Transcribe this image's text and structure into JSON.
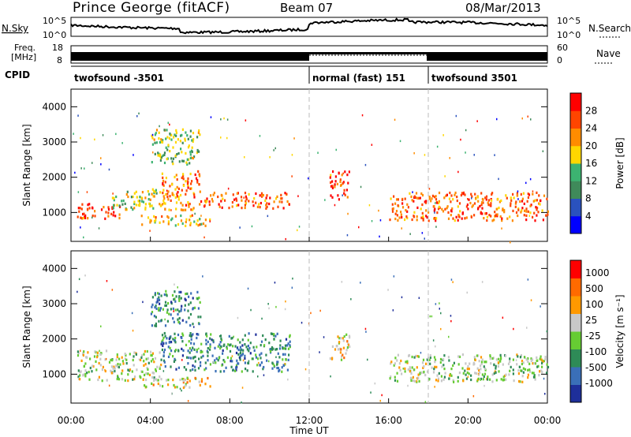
{
  "header": {
    "station": "Prince George (fitACF)",
    "beam": "Beam 07",
    "date": "08/Mar/2013"
  },
  "panel_labels": {
    "nsky": "N.Sky",
    "nsearch": "N.Search",
    "freq_line1": "Freq.",
    "freq_line2": "[MHz]",
    "nave": "Nave",
    "cpid": "CPID"
  },
  "noise_ticks": [
    "10^5",
    "10^0"
  ],
  "freq_ticks": [
    "18",
    "8"
  ],
  "nave_ticks": [
    "60",
    "0"
  ],
  "cpid_segments": [
    {
      "label": "twofsound -3501",
      "start": 0,
      "end": 12
    },
    {
      "label": "normal (fast) 151",
      "start": 12,
      "end": 18
    },
    {
      "label": "twofsound 3501",
      "start": 18,
      "end": 24
    }
  ],
  "colors": {
    "power": [
      "#0000ff",
      "#2a52be",
      "#3f8a5a",
      "#3cb371",
      "#ffd700",
      "#ff8c00",
      "#ff4500",
      "#ff0000"
    ],
    "velocity": [
      "#1e2f9a",
      "#3a6fb8",
      "#2e8b57",
      "#66cc33",
      "#c8c8c8",
      "#ff9900",
      "#ff6a00",
      "#ff0000"
    ]
  },
  "chart_data": [
    {
      "type": "heatmap",
      "ylabel": "Slant Range [km]",
      "xlabel": "Time UT",
      "x_ticks": [
        "00:00",
        "04:00",
        "08:00",
        "12:00",
        "16:00",
        "20:00",
        "00:00"
      ],
      "y_ticks": [
        "1000",
        "2000",
        "3000",
        "4000"
      ],
      "xlim": [
        0,
        24
      ],
      "ylim": [
        180,
        4500
      ],
      "colorbar": {
        "label": "Power [dB]",
        "ticks": [
          "4",
          "8",
          "12",
          "16",
          "20",
          "24",
          "28"
        ],
        "range": [
          0,
          30
        ]
      },
      "echo_regions": [
        {
          "t0": 0.3,
          "t1": 2.5,
          "r0": 850,
          "r1": 1300,
          "level": 0.85
        },
        {
          "t0": 2.0,
          "t1": 4.5,
          "r0": 1100,
          "r1": 1700,
          "level": 0.5
        },
        {
          "t0": 4.5,
          "t1": 6.5,
          "r0": 1100,
          "r1": 2200,
          "level": 0.75
        },
        {
          "t0": 6.5,
          "t1": 11.0,
          "r0": 1150,
          "r1": 1600,
          "level": 0.8
        },
        {
          "t0": 3.5,
          "t1": 7.0,
          "r0": 650,
          "r1": 950,
          "level": 0.6
        },
        {
          "t0": 4.0,
          "t1": 6.5,
          "r0": 2400,
          "r1": 3400,
          "level": 0.45
        },
        {
          "t0": 13.0,
          "t1": 14.0,
          "r0": 1400,
          "r1": 2200,
          "level": 0.85
        },
        {
          "t0": 16.0,
          "t1": 24.0,
          "r0": 800,
          "r1": 1600,
          "level": 0.8
        }
      ]
    },
    {
      "type": "heatmap",
      "ylabel": "Slant Range [km]",
      "xlabel": "Time UT",
      "x_ticks": [
        "00:00",
        "04:00",
        "08:00",
        "12:00",
        "16:00",
        "20:00",
        "00:00"
      ],
      "y_ticks": [
        "1000",
        "2000",
        "3000",
        "4000"
      ],
      "xlim": [
        0,
        24
      ],
      "ylim": [
        180,
        4500
      ],
      "colorbar": {
        "label": "Velocity [m s⁻¹]",
        "ticks": [
          "1000",
          "500",
          "100",
          "25",
          "-25",
          "-100",
          "-500",
          "-1000"
        ],
        "range": [
          -1000,
          1000
        ]
      },
      "echo_regions": [
        {
          "t0": 0.3,
          "t1": 4.5,
          "r0": 850,
          "r1": 1700,
          "level": 0.5
        },
        {
          "t0": 4.5,
          "t1": 11.0,
          "r0": 1100,
          "r1": 2200,
          "level": 0.25
        },
        {
          "t0": 3.5,
          "t1": 7.0,
          "r0": 650,
          "r1": 950,
          "level": 0.6
        },
        {
          "t0": 4.0,
          "t1": 6.5,
          "r0": 2400,
          "r1": 3400,
          "level": 0.25
        },
        {
          "t0": 13.0,
          "t1": 14.0,
          "r0": 1400,
          "r1": 2200,
          "level": 0.62
        },
        {
          "t0": 16.0,
          "t1": 24.0,
          "r0": 800,
          "r1": 1600,
          "level": 0.5
        }
      ]
    }
  ]
}
